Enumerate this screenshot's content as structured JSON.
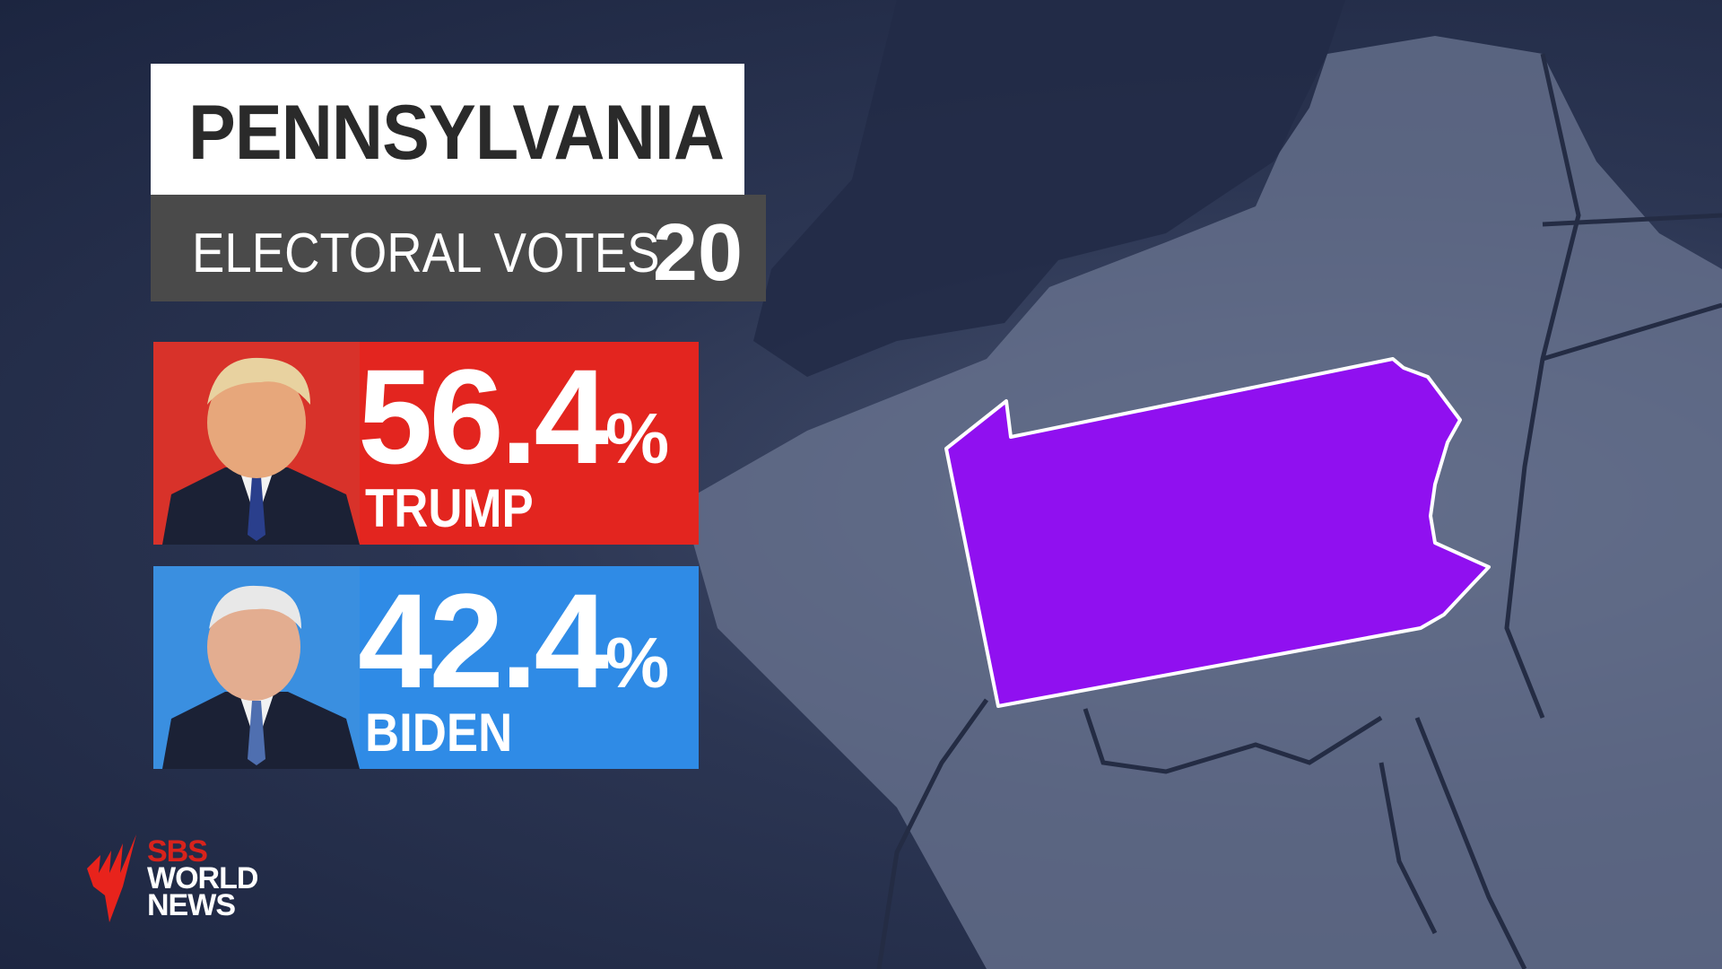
{
  "state": {
    "name": "PENNSYLVANIA",
    "electoral_votes_label": "ELECTORAL VOTES",
    "electoral_votes": "20",
    "map_color": "#9010f0"
  },
  "candidates": [
    {
      "name": "TRUMP",
      "percent": "56.4",
      "percent_sign": "%",
      "color": "#e3251f"
    },
    {
      "name": "BIDEN",
      "percent": "42.4",
      "percent_sign": "%",
      "color": "#2f8be6"
    }
  ],
  "logo": {
    "line1": "SBS",
    "line2": "WORLD",
    "line3": "NEWS"
  }
}
